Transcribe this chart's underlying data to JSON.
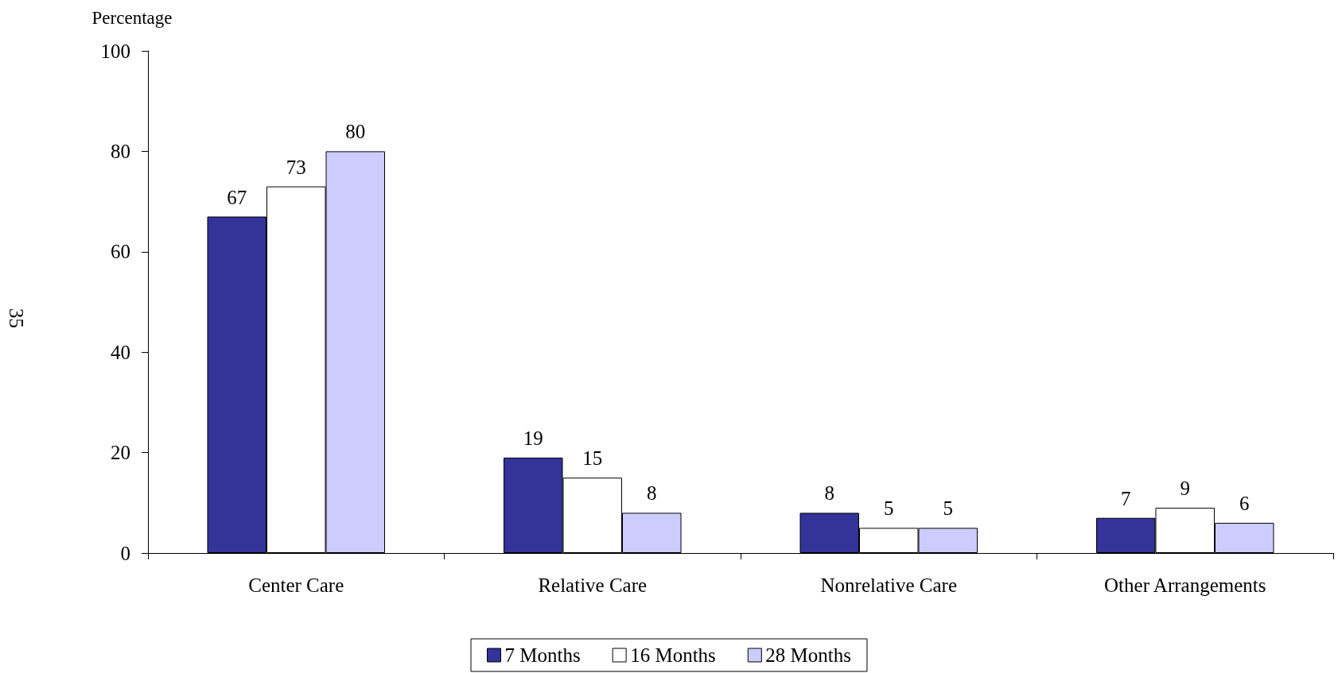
{
  "chart_data": {
    "type": "bar",
    "ylabel": "Percentage",
    "categories": [
      "Center Care",
      "Relative Care",
      "Nonrelative Care",
      "Other Arrangements"
    ],
    "series": [
      {
        "name": "7 Months",
        "color": "#333399",
        "values": [
          67,
          19,
          8,
          7
        ]
      },
      {
        "name": "16 Months",
        "color": "#ffffff",
        "values": [
          73,
          15,
          5,
          9
        ]
      },
      {
        "name": "28 Months",
        "color": "#ccccff",
        "values": [
          80,
          8,
          5,
          6
        ]
      }
    ],
    "ylim": [
      0,
      100
    ],
    "yticks": [
      0,
      20,
      40,
      60,
      80,
      100
    ],
    "grid": false,
    "legend": "bottom",
    "data_labels": true,
    "annotations": [
      "35"
    ]
  }
}
